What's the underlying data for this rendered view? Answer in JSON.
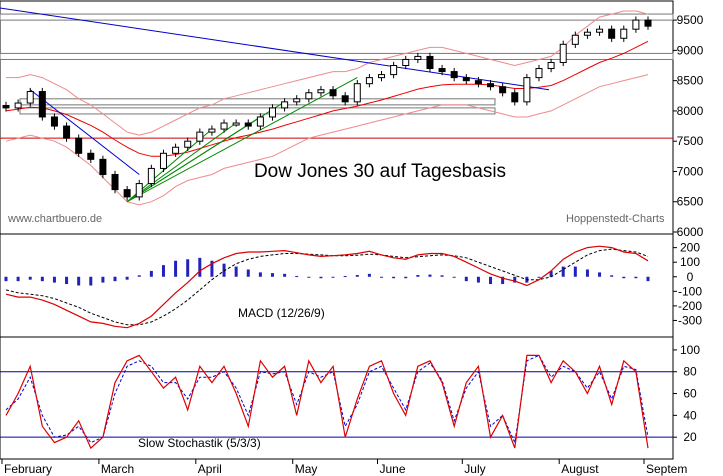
{
  "chart_data": [
    {
      "type": "candlestick",
      "title": "Dow Jones 30 auf Tagesbasis",
      "watermark_left": "www.chartbuero.de",
      "watermark_right": "Hoppenstedt-Charts",
      "ylim": [
        6000,
        9700
      ],
      "yticks": [
        6000,
        6500,
        7000,
        7500,
        8000,
        8500,
        9000,
        9500
      ],
      "ytick_labels": [
        "6000",
        "6500",
        "7000",
        "7500",
        "8000",
        "8500",
        "9000",
        "9500"
      ],
      "x": [
        "02-03",
        "02-06",
        "02-10",
        "02-13",
        "02-18",
        "02-21",
        "02-25",
        "02-28",
        "03-04",
        "03-07",
        "03-11",
        "03-13",
        "03-17",
        "03-20",
        "03-25",
        "03-28",
        "04-01",
        "04-04",
        "04-08",
        "04-11",
        "04-15",
        "04-18",
        "04-23",
        "04-28",
        "05-01",
        "05-06",
        "05-09",
        "05-14",
        "05-19",
        "05-22",
        "05-28",
        "06-02",
        "06-05",
        "06-10",
        "06-13",
        "06-18",
        "06-23",
        "06-26",
        "07-01",
        "07-07",
        "07-10",
        "07-15",
        "07-18",
        "07-23",
        "07-28",
        "07-31",
        "08-05",
        "08-08",
        "08-13",
        "08-18",
        "08-21",
        "08-26",
        "08-29",
        "09-04"
      ],
      "close": [
        8050,
        8130,
        8320,
        7900,
        7750,
        7550,
        7300,
        7200,
        6950,
        6700,
        6580,
        6800,
        7050,
        7300,
        7400,
        7500,
        7650,
        7700,
        7800,
        7800,
        7750,
        7900,
        8050,
        8150,
        8200,
        8300,
        8350,
        8250,
        8150,
        8450,
        8550,
        8600,
        8750,
        8850,
        8900,
        8700,
        8650,
        8550,
        8500,
        8450,
        8400,
        8300,
        8150,
        8550,
        8700,
        8800,
        9100,
        9250,
        9300,
        9350,
        9200,
        9350,
        9500,
        9400
      ],
      "ma_line": [
        8000,
        8030,
        8060,
        8050,
        8000,
        7940,
        7850,
        7760,
        7650,
        7520,
        7400,
        7300,
        7250,
        7250,
        7280,
        7320,
        7380,
        7440,
        7500,
        7560,
        7600,
        7650,
        7700,
        7760,
        7820,
        7880,
        7940,
        8000,
        8040,
        8080,
        8130,
        8180,
        8240,
        8300,
        8360,
        8400,
        8430,
        8440,
        8440,
        8440,
        8430,
        8400,
        8370,
        8370,
        8390,
        8420,
        8500,
        8600,
        8700,
        8800,
        8870,
        8950,
        9050,
        9150
      ],
      "bands": [
        {
          "name": "upper",
          "values": [
            8550,
            8550,
            8600,
            8550,
            8450,
            8350,
            8200,
            8100,
            7950,
            7800,
            7650,
            7600,
            7650,
            7750,
            7850,
            7950,
            8050,
            8100,
            8200,
            8250,
            8300,
            8350,
            8400,
            8450,
            8500,
            8550,
            8600,
            8650,
            8650,
            8700,
            8800,
            8850,
            8900,
            8950,
            9000,
            9050,
            9050,
            9000,
            8950,
            8900,
            8850,
            8800,
            8750,
            8800,
            8850,
            8900,
            9050,
            9250,
            9400,
            9550,
            9600,
            9650,
            9650,
            9600
          ]
        },
        {
          "name": "lower",
          "values": [
            7500,
            7550,
            7600,
            7550,
            7500,
            7400,
            7250,
            7100,
            6900,
            6700,
            6500,
            6450,
            6500,
            6600,
            6750,
            6850,
            6900,
            6950,
            7050,
            7100,
            7150,
            7200,
            7250,
            7350,
            7450,
            7550,
            7600,
            7650,
            7700,
            7750,
            7800,
            7850,
            7900,
            7950,
            8000,
            8050,
            8100,
            8100,
            8100,
            8050,
            8000,
            7950,
            7900,
            7900,
            7950,
            8000,
            8100,
            8200,
            8300,
            8400,
            8450,
            8500,
            8550,
            8600
          ]
        }
      ],
      "hline": 7550,
      "support_zones": [
        [
          9500,
          9600
        ],
        [
          8850,
          8950
        ],
        [
          8100,
          8200
        ],
        [
          7950,
          8050
        ]
      ]
    },
    {
      "type": "line",
      "label": "MACD (12/26/9)",
      "ylim": [
        -400,
        280
      ],
      "yticks": [
        -300,
        -200,
        -100,
        0,
        100,
        200
      ],
      "ytick_labels": [
        "-300",
        "-200",
        "-100",
        "0",
        "100",
        "200"
      ],
      "macd": [
        -120,
        -140,
        -140,
        -160,
        -190,
        -230,
        -270,
        -310,
        -320,
        -340,
        -350,
        -320,
        -270,
        -190,
        -110,
        -40,
        40,
        90,
        130,
        160,
        170,
        170,
        175,
        180,
        165,
        150,
        140,
        145,
        150,
        160,
        175,
        150,
        130,
        120,
        150,
        160,
        160,
        140,
        100,
        60,
        20,
        -10,
        -30,
        -60,
        -20,
        40,
        120,
        170,
        200,
        210,
        200,
        170,
        160,
        110
      ],
      "signal": [
        -90,
        -110,
        -120,
        -130,
        -150,
        -180,
        -210,
        -250,
        -280,
        -310,
        -330,
        -330,
        -310,
        -270,
        -220,
        -160,
        -90,
        -20,
        40,
        90,
        120,
        140,
        150,
        160,
        160,
        155,
        150,
        145,
        145,
        148,
        155,
        150,
        140,
        130,
        138,
        145,
        150,
        145,
        130,
        100,
        70,
        40,
        10,
        -20,
        -20,
        0,
        50,
        100,
        150,
        180,
        190,
        180,
        170,
        140
      ],
      "histogram": [
        -30,
        -30,
        -20,
        -30,
        -40,
        -50,
        -60,
        -60,
        -40,
        -30,
        -20,
        10,
        40,
        80,
        110,
        120,
        130,
        110,
        90,
        70,
        50,
        30,
        25,
        20,
        5,
        -5,
        -10,
        0,
        5,
        12,
        20,
        0,
        -10,
        -10,
        12,
        15,
        10,
        -5,
        -30,
        -40,
        -50,
        -50,
        -40,
        -40,
        0,
        40,
        70,
        70,
        50,
        30,
        10,
        -10,
        -10,
        -30
      ]
    },
    {
      "type": "line",
      "label": "Slow Stochastik (5/3/3)",
      "ylim": [
        0,
        110
      ],
      "yticks": [
        20,
        40,
        60,
        80,
        100
      ],
      "ytick_labels": [
        "20",
        "40",
        "60",
        "80",
        "100"
      ],
      "hlines": [
        20,
        80
      ],
      "k": [
        40,
        60,
        85,
        30,
        15,
        20,
        35,
        10,
        20,
        70,
        90,
        95,
        80,
        65,
        75,
        45,
        85,
        70,
        85,
        60,
        30,
        90,
        75,
        85,
        40,
        90,
        70,
        85,
        20,
        55,
        85,
        90,
        60,
        40,
        85,
        90,
        70,
        30,
        70,
        85,
        20,
        40,
        10,
        95,
        95,
        70,
        90,
        80,
        60,
        85,
        50,
        90,
        80,
        10
      ],
      "d": [
        45,
        55,
        75,
        40,
        20,
        22,
        30,
        15,
        20,
        60,
        85,
        90,
        85,
        70,
        70,
        55,
        75,
        75,
        80,
        65,
        40,
        80,
        78,
        80,
        50,
        80,
        75,
        80,
        30,
        50,
        80,
        85,
        65,
        45,
        80,
        88,
        72,
        35,
        65,
        80,
        30,
        40,
        15,
        90,
        95,
        75,
        85,
        80,
        65,
        80,
        55,
        85,
        82,
        20
      ]
    }
  ],
  "x_axis": {
    "month_labels": [
      "February",
      "March",
      "April",
      "May",
      "June",
      "July",
      "August",
      "Septem"
    ]
  },
  "colors": {
    "candle": "#000000",
    "band": "#f08a8a",
    "ma": "#ee0000",
    "trend_blue": "#0000cc",
    "fan_green": "#008800",
    "hline": "#cc0000",
    "macd": "#dd0000",
    "signal": "#000000",
    "histogram": "#2222bb",
    "stoch_k": "#dd0000",
    "stoch_d": "#0000cc",
    "stoch_hline": "#0000aa"
  }
}
